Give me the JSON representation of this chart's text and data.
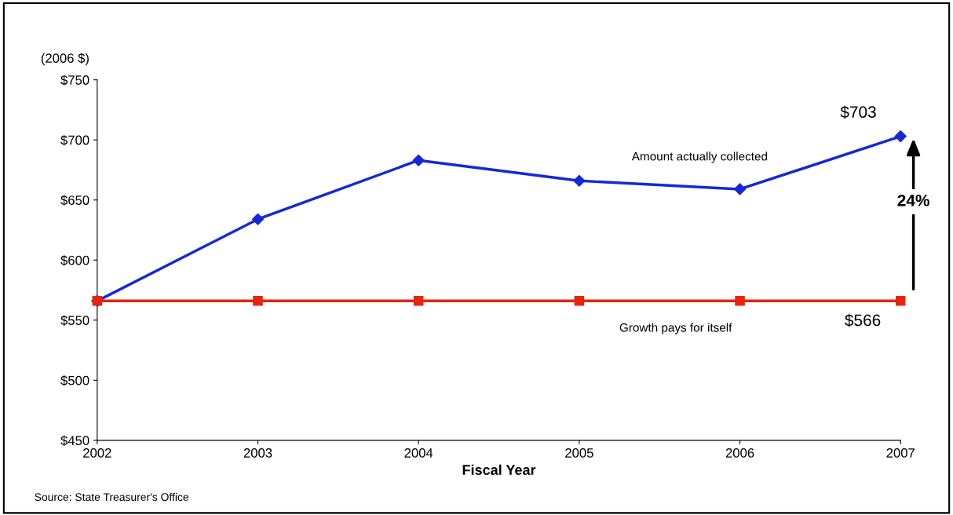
{
  "chart_data": {
    "type": "line",
    "xlabel": "Fiscal Year",
    "ylabel": "(2006 $)",
    "x": [
      2002,
      2003,
      2004,
      2005,
      2006,
      2007
    ],
    "series": [
      {
        "name": "Amount actually collected",
        "color": "#1428d8",
        "marker": "diamond",
        "values": [
          566,
          634,
          683,
          666,
          659,
          703
        ]
      },
      {
        "name": "Growth pays for itself",
        "color": "#e8240c",
        "marker": "square",
        "values": [
          566,
          566,
          566,
          566,
          566,
          566
        ]
      }
    ],
    "xlim": [
      2002,
      2007
    ],
    "xticks": [
      2002,
      2003,
      2004,
      2005,
      2006,
      2007
    ],
    "ylim": [
      450,
      750
    ],
    "yticks": [
      {
        "value": 450,
        "label": "$450"
      },
      {
        "value": 500,
        "label": "$500"
      },
      {
        "value": 550,
        "label": "$550"
      },
      {
        "value": 600,
        "label": "$600"
      },
      {
        "value": 650,
        "label": "$650"
      },
      {
        "value": 700,
        "label": "$700"
      },
      {
        "value": 750,
        "label": "$750"
      }
    ],
    "grid": false,
    "legend": false,
    "line_style": "solid",
    "annotations": [
      {
        "text": "$703",
        "x": 2007,
        "y": 703
      },
      {
        "text": "$566",
        "x": 2007,
        "y": 566
      },
      "24%",
      "Source: State Treasurer's Office"
    ]
  }
}
